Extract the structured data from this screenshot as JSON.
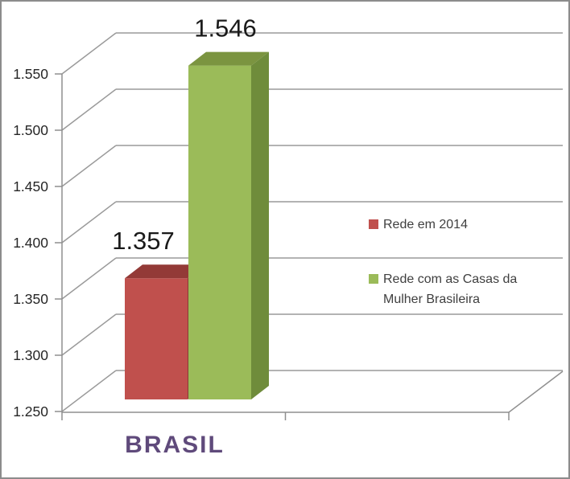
{
  "chart_data": {
    "type": "bar",
    "projection": "3d",
    "categories": [
      "BRASIL"
    ],
    "series": [
      {
        "name": "Rede em 2014",
        "values": [
          1357
        ],
        "data_labels": [
          "1.357"
        ],
        "color": "#C0504D",
        "color_top": "#933A37",
        "color_side": "#8C3836"
      },
      {
        "name": "Rede com as Casas da Mulher Brasileira",
        "values": [
          1546
        ],
        "data_labels": [
          "1.546"
        ],
        "color": "#9BBB59",
        "color_top": "#7B9440",
        "color_side": "#6F8C3B"
      }
    ],
    "ylim": [
      1250,
      1550
    ],
    "ytick_step": 50,
    "ytick_labels": [
      "1.250",
      "1.300",
      "1.350",
      "1.400",
      "1.450",
      "1.500",
      "1.550"
    ],
    "grid": true,
    "legend_position": "right"
  },
  "axis": {
    "category_label": "BRASIL"
  },
  "legend": {
    "items": [
      {
        "label": "Rede em 2014",
        "color": "#C0504D"
      },
      {
        "label": "Rede com as Casas da Mulher Brasileira",
        "color": "#9BBB59"
      }
    ]
  },
  "colors": {
    "background": "#FFFFFF",
    "frame_border": "#8C8C8C",
    "gridline": "#9A9A9A",
    "axis_line": "#8F8F8F",
    "tick_label": "#262626",
    "data_label": "#1A1A1A",
    "legend_text": "#3F3F3F",
    "category_label": "#5F4A7B"
  }
}
